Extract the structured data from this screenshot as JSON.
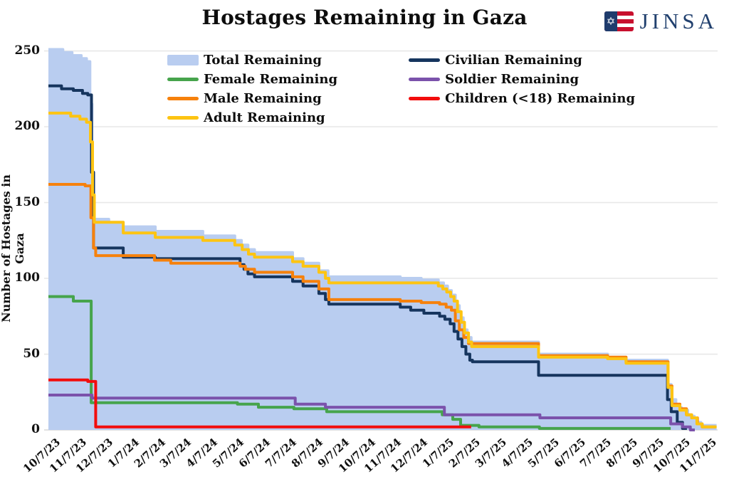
{
  "header": {
    "title": "Hostages Remaining in Gaza",
    "logo_text": "JINSA"
  },
  "colors": {
    "logo_navy": "#21406e",
    "flag_red": "#c8102e",
    "grid": "#e8e8e8",
    "axis_text": "#111111"
  },
  "chart_data": {
    "type": "area",
    "title": "Hostages Remaining in Gaza",
    "xlabel": "",
    "ylabel": "Number of Hostages in Gaza",
    "ylim": [
      0,
      250
    ],
    "yticks": [
      0,
      50,
      100,
      150,
      200,
      250
    ],
    "x_unit": "months since 10/7/23",
    "xlim_months": [
      0,
      25.6
    ],
    "grid": "horizontal",
    "legend_position": "top-center, two columns",
    "xticklabels": [
      "10/7/23",
      "11/7/23",
      "12/7/23",
      "1/7/24",
      "2/7/24",
      "3/7/24",
      "4/7/24",
      "5/7/24",
      "6/7/24",
      "7/7/24",
      "8/7/24",
      "9/7/24",
      "10/7/24",
      "11/7/24",
      "12/7/24",
      "1/7/25",
      "2/7/25",
      "3/7/25",
      "4/7/25",
      "5/7/25",
      "6/7/25",
      "7/7/25",
      "8/7/25",
      "9/7/25",
      "10/7/25",
      "11/7/25"
    ],
    "series": [
      {
        "name": "Total Remaining",
        "type": "area",
        "color": "#b9cdf0",
        "points": [
          [
            0,
            251
          ],
          [
            0.55,
            249
          ],
          [
            0.9,
            247
          ],
          [
            1.25,
            245
          ],
          [
            1.45,
            243
          ],
          [
            1.58,
            215
          ],
          [
            1.66,
            170
          ],
          [
            1.73,
            139
          ],
          [
            2.3,
            137
          ],
          [
            2.85,
            134
          ],
          [
            4.07,
            131
          ],
          [
            5.88,
            128
          ],
          [
            7.1,
            125
          ],
          [
            7.35,
            122
          ],
          [
            7.6,
            119
          ],
          [
            7.85,
            117
          ],
          [
            9.3,
            113
          ],
          [
            9.7,
            110
          ],
          [
            10.3,
            105
          ],
          [
            10.65,
            101
          ],
          [
            13.4,
            100
          ],
          [
            14.2,
            99
          ],
          [
            14.85,
            97
          ],
          [
            15.05,
            95
          ],
          [
            15.2,
            92
          ],
          [
            15.35,
            89
          ],
          [
            15.5,
            82
          ],
          [
            15.65,
            74
          ],
          [
            15.8,
            66
          ],
          [
            15.95,
            61
          ],
          [
            16.1,
            58
          ],
          [
            18.67,
            50
          ],
          [
            21.3,
            48
          ],
          [
            22,
            46
          ],
          [
            23.58,
            30
          ],
          [
            23.72,
            20
          ],
          [
            23.9,
            15
          ],
          [
            24.1,
            13
          ],
          [
            24.35,
            9
          ],
          [
            24.6,
            5
          ],
          [
            24.85,
            3
          ],
          [
            25.45,
            3
          ]
        ]
      },
      {
        "name": "Female Remaining",
        "type": "line",
        "color": "#46a44c",
        "points": [
          [
            0,
            88
          ],
          [
            0.95,
            85
          ],
          [
            1.63,
            18
          ],
          [
            7.2,
            17
          ],
          [
            8,
            15
          ],
          [
            9.35,
            14
          ],
          [
            10.6,
            12
          ],
          [
            15,
            10
          ],
          [
            15.4,
            7
          ],
          [
            15.7,
            3
          ],
          [
            16.4,
            2
          ],
          [
            18.7,
            1
          ],
          [
            23.7,
            1
          ]
        ]
      },
      {
        "name": "Civilian Remaining",
        "type": "line",
        "color": "#16355e",
        "points": [
          [
            0,
            227
          ],
          [
            0.5,
            225
          ],
          [
            0.95,
            224
          ],
          [
            1.3,
            222
          ],
          [
            1.5,
            221
          ],
          [
            1.64,
            170
          ],
          [
            1.72,
            120
          ],
          [
            2.85,
            114
          ],
          [
            4.07,
            113
          ],
          [
            7.3,
            109
          ],
          [
            7.45,
            106
          ],
          [
            7.6,
            103
          ],
          [
            7.85,
            101
          ],
          [
            9.3,
            98
          ],
          [
            9.7,
            95
          ],
          [
            10.3,
            90
          ],
          [
            10.55,
            86
          ],
          [
            10.68,
            83
          ],
          [
            13.4,
            81
          ],
          [
            13.8,
            79
          ],
          [
            14.3,
            77
          ],
          [
            14.9,
            75
          ],
          [
            15.1,
            73
          ],
          [
            15.3,
            70
          ],
          [
            15.45,
            65
          ],
          [
            15.6,
            60
          ],
          [
            15.75,
            55
          ],
          [
            15.9,
            50
          ],
          [
            16.05,
            46
          ],
          [
            16.15,
            45
          ],
          [
            18.67,
            36
          ],
          [
            23.58,
            20
          ],
          [
            23.72,
            12
          ],
          [
            23.95,
            5
          ],
          [
            24.15,
            1
          ],
          [
            24.32,
            1
          ]
        ]
      },
      {
        "name": "Male Remaining",
        "type": "line",
        "color": "#f6810c",
        "points": [
          [
            0,
            162
          ],
          [
            1.4,
            161
          ],
          [
            1.62,
            140
          ],
          [
            1.72,
            120
          ],
          [
            1.8,
            115
          ],
          [
            4.04,
            112
          ],
          [
            4.66,
            110
          ],
          [
            7.3,
            108
          ],
          [
            7.5,
            106
          ],
          [
            7.85,
            104
          ],
          [
            9.3,
            101
          ],
          [
            9.7,
            98
          ],
          [
            10.3,
            93
          ],
          [
            10.68,
            86
          ],
          [
            13.4,
            85
          ],
          [
            14.2,
            84
          ],
          [
            14.9,
            83
          ],
          [
            15.15,
            81
          ],
          [
            15.35,
            79
          ],
          [
            15.5,
            72
          ],
          [
            15.65,
            66
          ],
          [
            15.82,
            61
          ],
          [
            16,
            57
          ],
          [
            18.67,
            49
          ],
          [
            21.3,
            48
          ],
          [
            22,
            45
          ],
          [
            23.6,
            29
          ],
          [
            23.75,
            17
          ],
          [
            24.05,
            14
          ],
          [
            24.3,
            10
          ],
          [
            24.5,
            8
          ],
          [
            24.72,
            4
          ],
          [
            24.9,
            2
          ],
          [
            25.4,
            2
          ]
        ]
      },
      {
        "name": "Adult Remaining",
        "type": "line",
        "color": "#fdc412",
        "points": [
          [
            0,
            209
          ],
          [
            0.85,
            207
          ],
          [
            1.2,
            205
          ],
          [
            1.45,
            203
          ],
          [
            1.6,
            190
          ],
          [
            1.68,
            155
          ],
          [
            1.75,
            137
          ],
          [
            2.85,
            130
          ],
          [
            4.07,
            127
          ],
          [
            5.88,
            125
          ],
          [
            7.1,
            122
          ],
          [
            7.38,
            119
          ],
          [
            7.62,
            116
          ],
          [
            7.85,
            114
          ],
          [
            9.3,
            111
          ],
          [
            9.7,
            108
          ],
          [
            10.3,
            104
          ],
          [
            10.55,
            100
          ],
          [
            10.68,
            97
          ],
          [
            14.85,
            95
          ],
          [
            15.02,
            93
          ],
          [
            15.17,
            91
          ],
          [
            15.32,
            88
          ],
          [
            15.45,
            85
          ],
          [
            15.58,
            78
          ],
          [
            15.72,
            71
          ],
          [
            15.85,
            64
          ],
          [
            16,
            58
          ],
          [
            16.12,
            55
          ],
          [
            18.67,
            48
          ],
          [
            21.3,
            47
          ],
          [
            22,
            44
          ],
          [
            23.6,
            28
          ],
          [
            23.75,
            16
          ],
          [
            24.05,
            13
          ],
          [
            24.3,
            10
          ],
          [
            24.5,
            8
          ],
          [
            24.7,
            4
          ],
          [
            24.9,
            2
          ],
          [
            25.45,
            2
          ]
        ]
      },
      {
        "name": "Soldier Remaining",
        "type": "line",
        "color": "#7b52ab",
        "points": [
          [
            0,
            23
          ],
          [
            1.66,
            21
          ],
          [
            9.4,
            17
          ],
          [
            10.55,
            15
          ],
          [
            15.08,
            10
          ],
          [
            18.72,
            8
          ],
          [
            23.7,
            4
          ],
          [
            24.15,
            2
          ],
          [
            24.45,
            0
          ],
          [
            24.62,
            0
          ]
        ]
      },
      {
        "name": "Children (<18) Remaining",
        "type": "line",
        "color": "#f20d0d",
        "points": [
          [
            0,
            33
          ],
          [
            1.5,
            32
          ],
          [
            1.8,
            2
          ],
          [
            16.1,
            2
          ]
        ]
      }
    ],
    "legend_columns": [
      [
        "Total Remaining",
        "Female Remaining",
        "Male Remaining",
        "Adult Remaining"
      ],
      [
        "Civilian Remaining",
        "Soldier Remaining",
        "Children (<18) Remaining"
      ]
    ]
  }
}
